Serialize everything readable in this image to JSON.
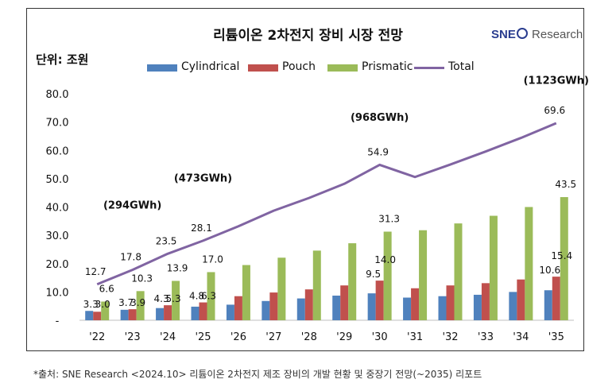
{
  "title": "리튬이온 2차전지 장비 시장 전망",
  "logo": {
    "brand": "SNE",
    "suffix": "Research"
  },
  "unit_label": "단위: 조원",
  "footer": "*출처:  SNE Research <2024.10> 리튬이온 2차전지 제조 장비의 개발 현황 및 중장기 전망(~2035) 리포트",
  "chart_data": {
    "type": "bar",
    "title": "리튬이온 2차전지 장비 시장 전망",
    "ylabel": "단위: 조원",
    "xlabel": "",
    "ylim": [
      0,
      80
    ],
    "yticks": [
      "-",
      "10.0",
      "20.0",
      "30.0",
      "40.0",
      "50.0",
      "60.0",
      "70.0",
      "80.0"
    ],
    "grid": false,
    "legend_position": "top",
    "categories": [
      "'22",
      "'23",
      "'24",
      "'25",
      "'26",
      "'27",
      "'28",
      "'29",
      "'30",
      "'31",
      "'32",
      "'33",
      "'34",
      "'35"
    ],
    "series": [
      {
        "name": "Cylindrical",
        "kind": "bar",
        "color": "#4f81bd",
        "values": [
          3.3,
          3.7,
          4.3,
          4.8,
          5.5,
          6.8,
          7.7,
          8.7,
          9.5,
          8.0,
          8.5,
          9.0,
          10.0,
          10.6
        ],
        "labels": [
          "3.3",
          "3.7",
          "4.3",
          "4.8",
          "",
          "",
          "",
          "",
          "9.5",
          "",
          "",
          "",
          "",
          "10.6"
        ]
      },
      {
        "name": "Pouch",
        "kind": "bar",
        "color": "#c0504d",
        "values": [
          3.0,
          3.9,
          5.3,
          6.3,
          8.5,
          9.8,
          10.9,
          12.3,
          14.0,
          11.3,
          12.3,
          13.1,
          14.4,
          15.4
        ],
        "labels": [
          "3.0",
          "3.9",
          "5.3",
          "6.3",
          "",
          "",
          "",
          "",
          "14.0",
          "",
          "",
          "",
          "",
          "15.4"
        ]
      },
      {
        "name": "Prismatic",
        "kind": "bar",
        "color": "#9bbb59",
        "values": [
          6.6,
          10.3,
          13.9,
          17.0,
          19.5,
          22.1,
          24.6,
          27.2,
          31.3,
          31.8,
          34.2,
          36.9,
          40.0,
          43.5
        ],
        "labels": [
          "6.6",
          "10.3",
          "13.9",
          "17.0",
          "",
          "",
          "",
          "",
          "31.3",
          "",
          "",
          "",
          "",
          "43.5"
        ]
      },
      {
        "name": "Total",
        "kind": "line",
        "color": "#8064a2",
        "values": [
          12.7,
          17.8,
          23.5,
          28.1,
          33.2,
          38.7,
          43.2,
          48.2,
          54.9,
          50.6,
          55.0,
          59.6,
          64.4,
          69.6
        ],
        "labels": [
          "12.7",
          "17.8",
          "23.5",
          "28.1",
          "",
          "",
          "",
          "",
          "54.9",
          "",
          "",
          "",
          "",
          "69.6"
        ]
      }
    ],
    "annotations": [
      {
        "text": "(294GWh)",
        "category": "'23",
        "value": 39.5
      },
      {
        "text": "(473GWh)",
        "category": "'25",
        "value": 49.0
      },
      {
        "text": "(968GWh)",
        "category": "'30",
        "value": 70.5
      },
      {
        "text": "(1123GWh)",
        "category": "'35",
        "value": 83.5
      }
    ]
  }
}
